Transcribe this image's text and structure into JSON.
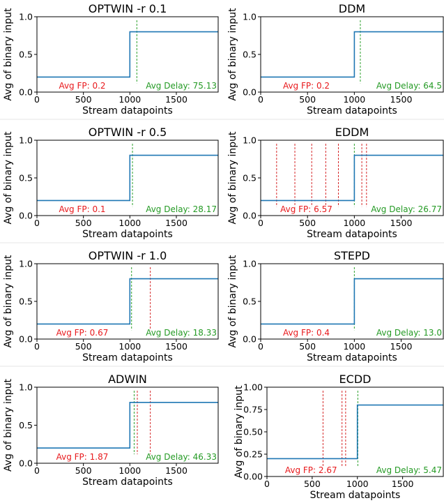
{
  "chart_data": [
    {
      "type": "line",
      "title": "OPTWIN -r 0.1",
      "xlabel": "Stream datapoints",
      "ylabel": "Avg of binary input",
      "xlim": [
        0,
        1950
      ],
      "ylim": [
        0,
        1.0
      ],
      "xticks": [
        "0",
        "500",
        "1000",
        "1500"
      ],
      "yticks": [
        "0.0",
        "0.5",
        "1.0"
      ],
      "series": [
        {
          "x": [
            0,
            1000,
            1000,
            1950
          ],
          "values": [
            0.2,
            0.2,
            0.8,
            0.8
          ]
        }
      ],
      "true_positive_detections": [
        1075
      ],
      "false_positive_detections": [],
      "fp_label": "Avg FP: 0.2",
      "delay_label": "Avg Delay: 75.13"
    },
    {
      "type": "line",
      "title": "DDM",
      "xlabel": "Stream datapoints",
      "ylabel": "Avg of binary input",
      "xlim": [
        0,
        1950
      ],
      "ylim": [
        0,
        1.0
      ],
      "xticks": [
        "0",
        "500",
        "1000",
        "1500"
      ],
      "yticks": [
        "0.0",
        "0.5",
        "1.0"
      ],
      "series": [
        {
          "x": [
            0,
            1000,
            1000,
            1950
          ],
          "values": [
            0.2,
            0.2,
            0.8,
            0.8
          ]
        }
      ],
      "true_positive_detections": [
        1064
      ],
      "false_positive_detections": [],
      "fp_label": "Avg FP: 0.2",
      "delay_label": "Avg Delay: 64.5"
    },
    {
      "type": "line",
      "title": "OPTWIN -r 0.5",
      "xlabel": "Stream datapoints",
      "ylabel": "Avg of binary input",
      "xlim": [
        0,
        1950
      ],
      "ylim": [
        0,
        1.0
      ],
      "xticks": [
        "0",
        "500",
        "1000",
        "1500"
      ],
      "yticks": [
        "0.0",
        "0.5",
        "1.0"
      ],
      "series": [
        {
          "x": [
            0,
            1000,
            1000,
            1950
          ],
          "values": [
            0.2,
            0.2,
            0.8,
            0.8
          ]
        }
      ],
      "true_positive_detections": [
        1028
      ],
      "false_positive_detections": [],
      "fp_label": "Avg FP: 0.1",
      "delay_label": "Avg Delay: 28.17"
    },
    {
      "type": "line",
      "title": "EDDM",
      "xlabel": "Stream datapoints",
      "ylabel": "Avg of binary input",
      "xlim": [
        0,
        1950
      ],
      "ylim": [
        0,
        1.0
      ],
      "xticks": [
        "0",
        "500",
        "1000",
        "1500"
      ],
      "yticks": [
        "0.0",
        "0.5",
        "1.0"
      ],
      "series": [
        {
          "x": [
            0,
            1000,
            1000,
            1950
          ],
          "values": [
            0.2,
            0.2,
            0.8,
            0.8
          ]
        }
      ],
      "true_positive_detections": [
        1000
      ],
      "false_positive_detections": [
        170,
        365,
        545,
        695,
        830,
        1080,
        1130
      ],
      "fp_label": "Avg FP: 6.57",
      "delay_label": "Avg Delay: 26.77"
    },
    {
      "type": "line",
      "title": "OPTWIN -r 1.0",
      "xlabel": "Stream datapoints",
      "ylabel": "Avg of binary input",
      "xlim": [
        0,
        1950
      ],
      "ylim": [
        0,
        1.0
      ],
      "xticks": [
        "0",
        "500",
        "1000",
        "1500"
      ],
      "yticks": [
        "0.0",
        "0.5",
        "1.0"
      ],
      "series": [
        {
          "x": [
            0,
            1000,
            1000,
            1950
          ],
          "values": [
            0.2,
            0.2,
            0.8,
            0.8
          ]
        }
      ],
      "true_positive_detections": [
        1018
      ],
      "false_positive_detections": [
        1220
      ],
      "fp_label": "Avg FP: 0.67",
      "delay_label": "Avg Delay: 18.33"
    },
    {
      "type": "line",
      "title": "STEPD",
      "xlabel": "Stream datapoints",
      "ylabel": "Avg of binary input",
      "xlim": [
        0,
        1950
      ],
      "ylim": [
        0,
        1.0
      ],
      "xticks": [
        "0",
        "500",
        "1000",
        "1500"
      ],
      "yticks": [
        "0.0",
        "0.5",
        "1.0"
      ],
      "series": [
        {
          "x": [
            0,
            1000,
            1000,
            1950
          ],
          "values": [
            0.2,
            0.2,
            0.8,
            0.8
          ]
        }
      ],
      "true_positive_detections": [
        1000
      ],
      "false_positive_detections": [],
      "fp_label": "Avg FP: 0.4",
      "delay_label": "Avg Delay: 13.0"
    },
    {
      "type": "line",
      "title": "ADWIN",
      "xlabel": "Stream datapoints",
      "ylabel": "Avg of binary input",
      "xlim": [
        0,
        1950
      ],
      "ylim": [
        0,
        1.0
      ],
      "xticks": [
        "0",
        "500",
        "1000",
        "1500"
      ],
      "yticks": [
        "0.0",
        "0.5",
        "1.0"
      ],
      "series": [
        {
          "x": [
            0,
            1000,
            1000,
            1950
          ],
          "values": [
            0.2,
            0.2,
            0.8,
            0.8
          ]
        }
      ],
      "true_positive_detections": [
        1046
      ],
      "false_positive_detections": [
        1080,
        1220
      ],
      "fp_label": "Avg FP: 1.87",
      "delay_label": "Avg Delay: 46.33"
    },
    {
      "type": "line",
      "title": "ECDD",
      "xlabel": "Stream datapoints",
      "ylabel": "Avg of binary input",
      "xlim": [
        0,
        1950
      ],
      "ylim": [
        0,
        1.0
      ],
      "xticks": [
        "0",
        "500",
        "1000",
        "1500"
      ],
      "yticks": [
        "0.00",
        "0.25",
        "0.50",
        "0.75",
        "1.00"
      ],
      "series": [
        {
          "x": [
            0,
            1000,
            1000,
            1950
          ],
          "values": [
            0.2,
            0.2,
            0.8,
            0.8
          ]
        }
      ],
      "true_positive_detections": [
        1005
      ],
      "false_positive_detections": [
        620,
        830,
        870
      ],
      "fp_label": "Avg FP: 2.67",
      "delay_label": "Avg Delay: 5.47"
    }
  ],
  "colors": {
    "signal": "#1f77b4",
    "true_positive": "#2ca02c",
    "false_positive": "#d62728",
    "fp_text": "#e8191c",
    "delay_text": "#249a24",
    "axis": "#000000"
  }
}
